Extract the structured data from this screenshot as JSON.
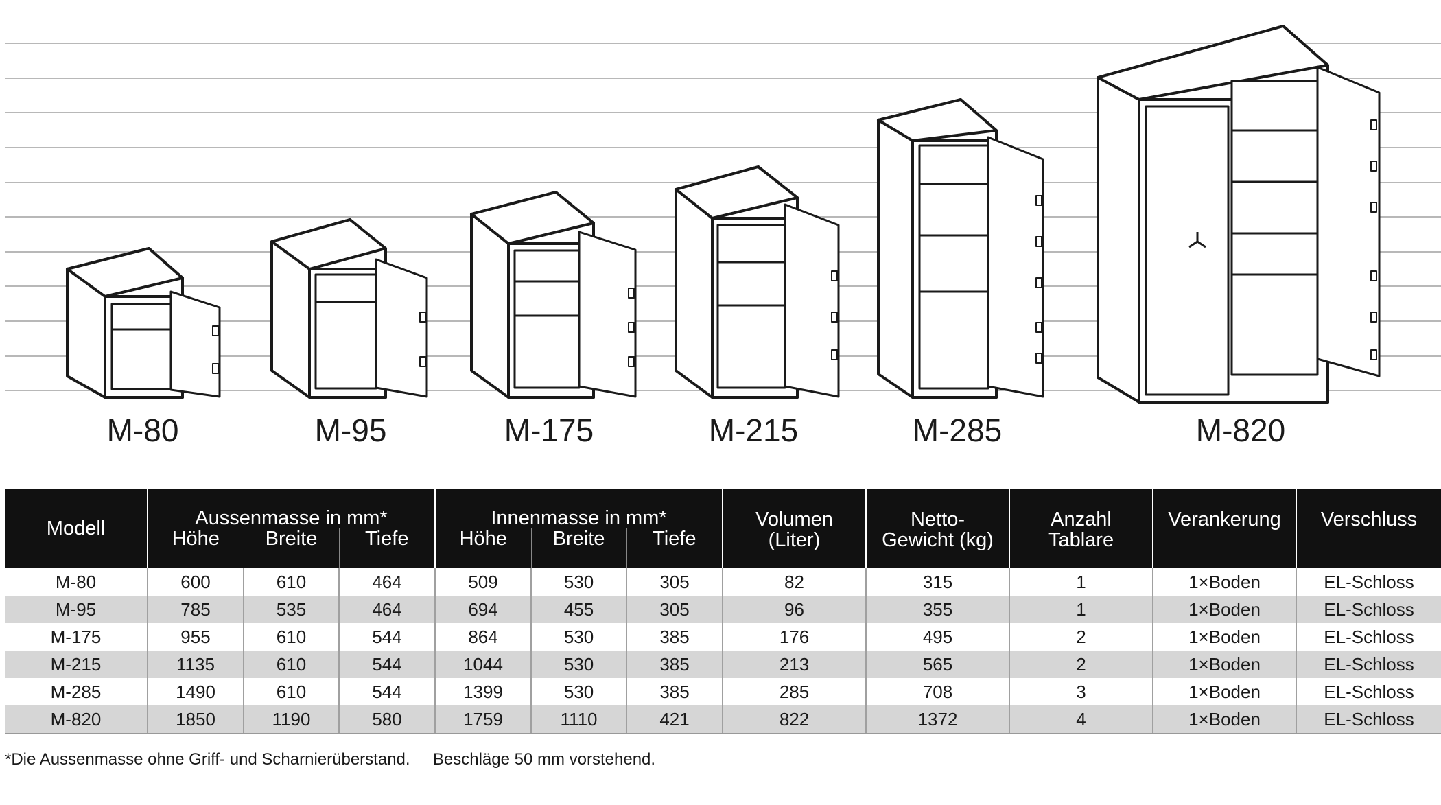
{
  "models": [
    "M-80",
    "M-95",
    "M-175",
    "M-215",
    "M-285",
    "M-820"
  ],
  "table": {
    "col_model": "Modell",
    "group_outer": "Aussenmasse in mm*",
    "group_inner": "Innenmasse in mm*",
    "sub_height": "Höhe",
    "sub_width": "Breite",
    "sub_depth": "Tiefe",
    "col_volume_1": "Volumen",
    "col_volume_2": "(Liter)",
    "col_weight_1": "Netto-",
    "col_weight_2": "Gewicht (kg)",
    "col_shelves_1": "Anzahl",
    "col_shelves_2": "Tablare",
    "col_anchor": "Verankerung",
    "col_lock": "Verschluss",
    "rows": [
      [
        "M-80",
        "600",
        "610",
        "464",
        "509",
        "530",
        "305",
        "82",
        "315",
        "1",
        "1×Boden",
        "EL-Schloss"
      ],
      [
        "M-95",
        "785",
        "535",
        "464",
        "694",
        "455",
        "305",
        "96",
        "355",
        "1",
        "1×Boden",
        "EL-Schloss"
      ],
      [
        "M-175",
        "955",
        "610",
        "544",
        "864",
        "530",
        "385",
        "176",
        "495",
        "2",
        "1×Boden",
        "EL-Schloss"
      ],
      [
        "M-215",
        "1135",
        "610",
        "544",
        "1044",
        "530",
        "385",
        "213",
        "565",
        "2",
        "1×Boden",
        "EL-Schloss"
      ],
      [
        "M-285",
        "1490",
        "610",
        "544",
        "1399",
        "530",
        "385",
        "285",
        "708",
        "3",
        "1×Boden",
        "EL-Schloss"
      ],
      [
        "M-820",
        "1850",
        "1190",
        "580",
        "1759",
        "1110",
        "421",
        "822",
        "1372",
        "4",
        "1×Boden",
        "EL-Schloss"
      ]
    ]
  },
  "footnote": "*Die Aussenmasse ohne Griff- und Scharnierüberstand.     Beschläge 50 mm vorstehend.",
  "colors": {
    "header_bg": "#111111",
    "stripe": "#d6d6d6",
    "grid_line": "#b8b8b8"
  }
}
